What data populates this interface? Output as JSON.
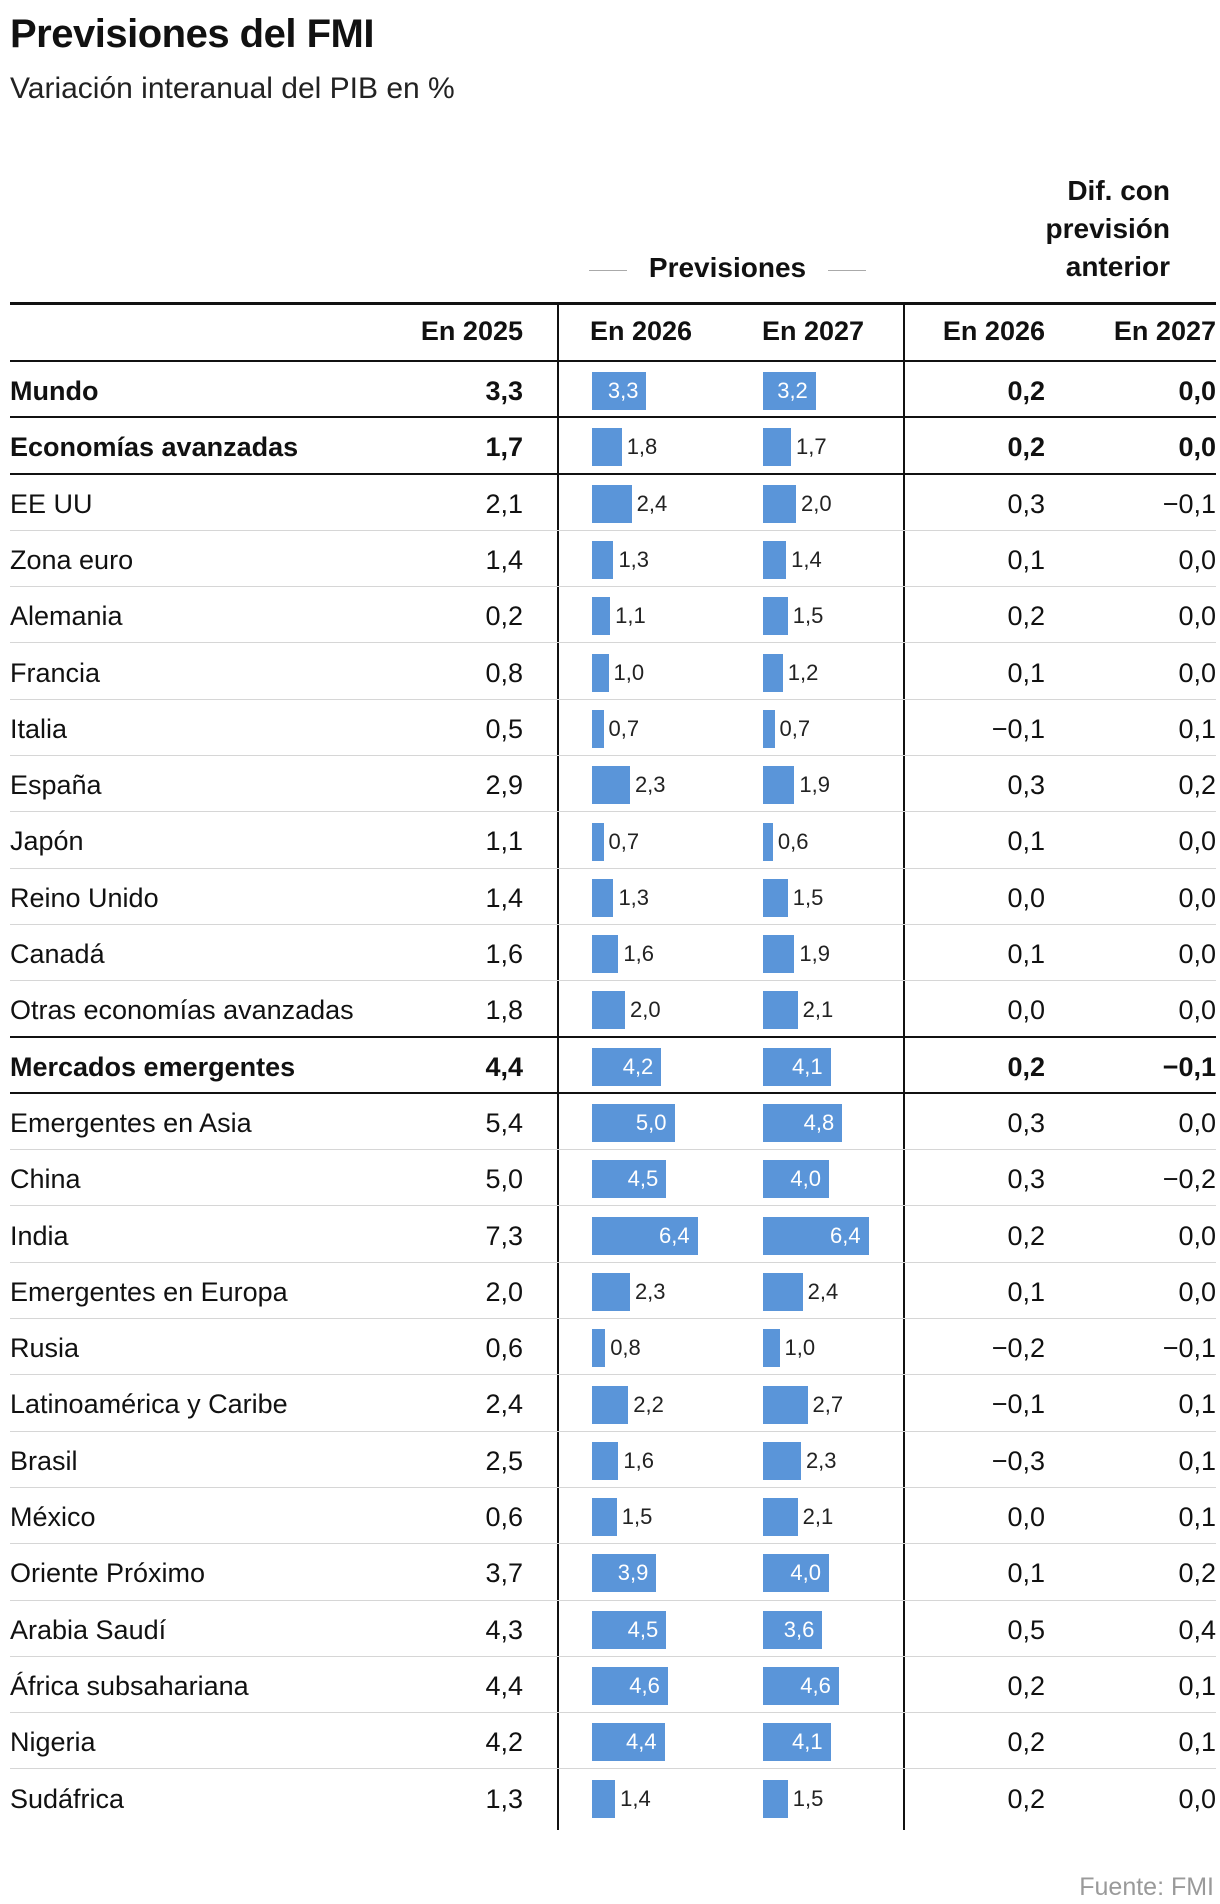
{
  "title": "Previsiones del FMI",
  "subtitle": "Variación interanual del PIB en %",
  "header_diff": [
    "Dif. con",
    "previsión",
    "anterior"
  ],
  "header_previsiones": "Previsiones",
  "columns": [
    "En 2025",
    "En 2026",
    "En 2027",
    "En 2026",
    "En 2027"
  ],
  "source": "Fuente: FMI",
  "colors": {
    "bar": "#5a95d9",
    "rule": "#111111",
    "grid": "#d6d6d6",
    "source": "#9a9a9a"
  },
  "chart_data": {
    "type": "table",
    "columns": [
      "En 2025",
      "En 2026",
      "En 2027",
      "Dif. En 2026",
      "Dif. En 2027"
    ],
    "rows": [
      {
        "name": "Mundo",
        "bold": true,
        "v2025": "3,3",
        "v2026": 3.3,
        "v2027": 3.2,
        "d2026": "0,2",
        "d2027": "0,0"
      },
      {
        "name": "Economías avanzadas",
        "bold": true,
        "v2025": "1,7",
        "v2026": 1.8,
        "v2027": 1.7,
        "d2026": "0,2",
        "d2027": "0,0"
      },
      {
        "name": "EE UU",
        "bold": false,
        "v2025": "2,1",
        "v2026": 2.4,
        "v2027": 2.0,
        "d2026": "0,3",
        "d2027": "−0,1"
      },
      {
        "name": "Zona euro",
        "bold": false,
        "v2025": "1,4",
        "v2026": 1.3,
        "v2027": 1.4,
        "d2026": "0,1",
        "d2027": "0,0"
      },
      {
        "name": "Alemania",
        "bold": false,
        "v2025": "0,2",
        "v2026": 1.1,
        "v2027": 1.5,
        "d2026": "0,2",
        "d2027": "0,0"
      },
      {
        "name": "Francia",
        "bold": false,
        "v2025": "0,8",
        "v2026": 1.0,
        "v2027": 1.2,
        "d2026": "0,1",
        "d2027": "0,0"
      },
      {
        "name": "Italia",
        "bold": false,
        "v2025": "0,5",
        "v2026": 0.7,
        "v2027": 0.7,
        "d2026": "−0,1",
        "d2027": "0,1"
      },
      {
        "name": "España",
        "bold": false,
        "v2025": "2,9",
        "v2026": 2.3,
        "v2027": 1.9,
        "d2026": "0,3",
        "d2027": "0,2"
      },
      {
        "name": "Japón",
        "bold": false,
        "v2025": "1,1",
        "v2026": 0.7,
        "v2027": 0.6,
        "d2026": "0,1",
        "d2027": "0,0"
      },
      {
        "name": "Reino Unido",
        "bold": false,
        "v2025": "1,4",
        "v2026": 1.3,
        "v2027": 1.5,
        "d2026": "0,0",
        "d2027": "0,0"
      },
      {
        "name": "Canadá",
        "bold": false,
        "v2025": "1,6",
        "v2026": 1.6,
        "v2027": 1.9,
        "d2026": "0,1",
        "d2027": "0,0"
      },
      {
        "name": "Otras economías avanzadas",
        "bold": false,
        "v2025": "1,8",
        "v2026": 2.0,
        "v2027": 2.1,
        "d2026": "0,0",
        "d2027": "0,0"
      },
      {
        "name": "Mercados emergentes",
        "bold": true,
        "v2025": "4,4",
        "v2026": 4.2,
        "v2027": 4.1,
        "d2026": "0,2",
        "d2027": "−0,1"
      },
      {
        "name": "Emergentes en Asia",
        "bold": false,
        "v2025": "5,4",
        "v2026": 5.0,
        "v2027": 4.8,
        "d2026": "0,3",
        "d2027": "0,0"
      },
      {
        "name": "China",
        "bold": false,
        "v2025": "5,0",
        "v2026": 4.5,
        "v2027": 4.0,
        "d2026": "0,3",
        "d2027": "−0,2"
      },
      {
        "name": "India",
        "bold": false,
        "v2025": "7,3",
        "v2026": 6.4,
        "v2027": 6.4,
        "d2026": "0,2",
        "d2027": "0,0"
      },
      {
        "name": "Emergentes en Europa",
        "bold": false,
        "v2025": "2,0",
        "v2026": 2.3,
        "v2027": 2.4,
        "d2026": "0,1",
        "d2027": "0,0"
      },
      {
        "name": "Rusia",
        "bold": false,
        "v2025": "0,6",
        "v2026": 0.8,
        "v2027": 1.0,
        "d2026": "−0,2",
        "d2027": "−0,1"
      },
      {
        "name": "Latinoamérica y Caribe",
        "bold": false,
        "v2025": "2,4",
        "v2026": 2.2,
        "v2027": 2.7,
        "d2026": "−0,1",
        "d2027": "0,1"
      },
      {
        "name": "Brasil",
        "bold": false,
        "v2025": "2,5",
        "v2026": 1.6,
        "v2027": 2.3,
        "d2026": "−0,3",
        "d2027": "0,1"
      },
      {
        "name": "México",
        "bold": false,
        "v2025": "0,6",
        "v2026": 1.5,
        "v2027": 2.1,
        "d2026": "0,0",
        "d2027": "0,1"
      },
      {
        "name": "Oriente Próximo",
        "bold": false,
        "v2025": "3,7",
        "v2026": 3.9,
        "v2027": 4.0,
        "d2026": "0,1",
        "d2027": "0,2"
      },
      {
        "name": "Arabia Saudí",
        "bold": false,
        "v2025": "4,3",
        "v2026": 4.5,
        "v2027": 3.6,
        "d2026": "0,5",
        "d2027": "0,4"
      },
      {
        "name": "África subsahariana",
        "bold": false,
        "v2025": "4,4",
        "v2026": 4.6,
        "v2027": 4.6,
        "d2026": "0,2",
        "d2027": "0,1"
      },
      {
        "name": "Nigeria",
        "bold": false,
        "v2025": "4,2",
        "v2026": 4.4,
        "v2027": 4.1,
        "d2026": "0,2",
        "d2027": "0,1"
      },
      {
        "name": "Sudáfrica",
        "bold": false,
        "v2025": "1,3",
        "v2026": 1.4,
        "v2027": 1.5,
        "d2026": "0,2",
        "d2027": "0,0"
      }
    ]
  }
}
